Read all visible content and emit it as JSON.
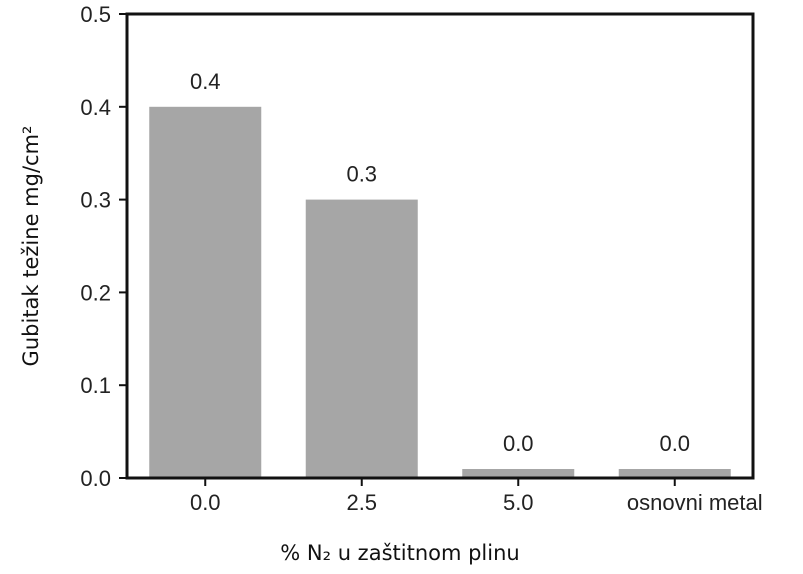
{
  "chart_data": {
    "type": "bar",
    "categories": [
      "0.0",
      "2.5",
      "5.0",
      "osnovni metal"
    ],
    "values": [
      0.4,
      0.3,
      0.0,
      0.0
    ],
    "data_labels": [
      "0.4",
      "0.3",
      "0.0",
      "0.0"
    ],
    "title": "",
    "xlabel": "% N₂ u zaštitnom plinu",
    "ylabel": "Gubitak težine mg/cm²",
    "ylim": [
      0,
      0.5
    ],
    "yticks": [
      "0.0",
      "0.1",
      "0.2",
      "0.3",
      "0.4",
      "0.5"
    ],
    "grid": false,
    "legend": "none",
    "colors": {
      "bar": "#a6a6a6",
      "frame": "#111111"
    }
  }
}
